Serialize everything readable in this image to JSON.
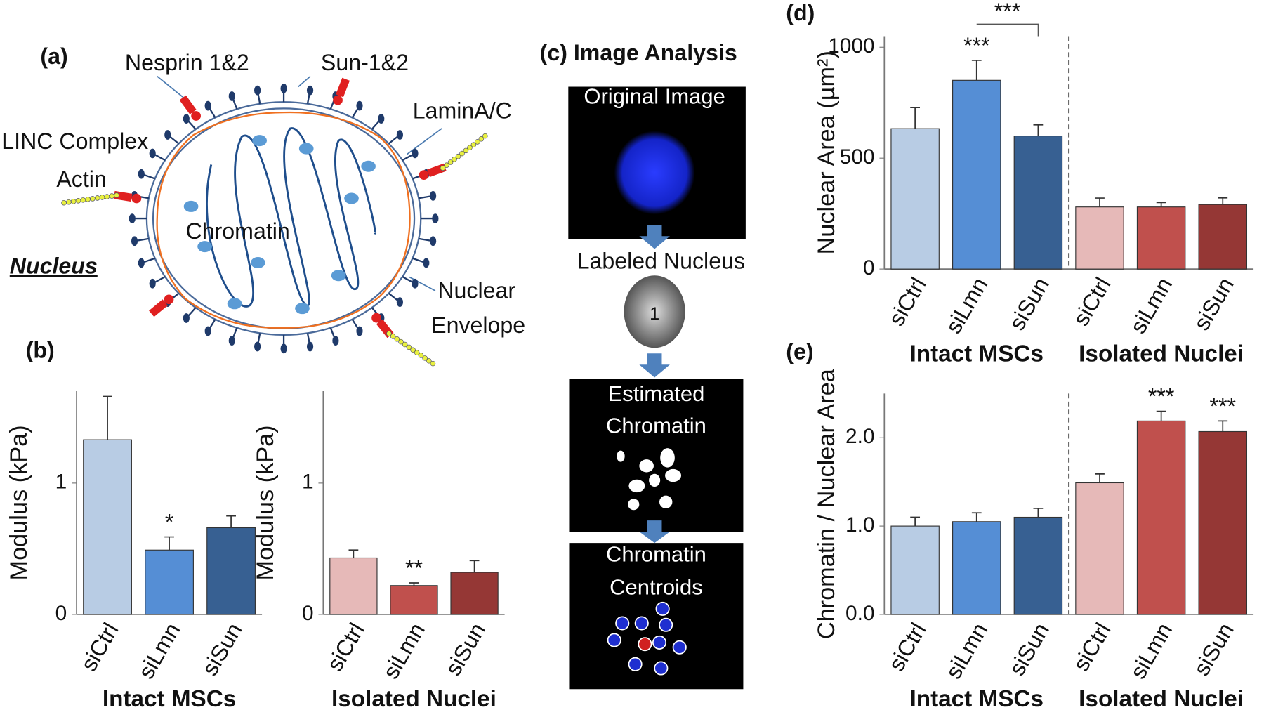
{
  "panel_a": {
    "label": "(a)",
    "nesprin": "Nesprin 1&2",
    "sun": "Sun-1&2",
    "lamin": "LaminA/C",
    "linc": "LINC Complex",
    "actin": "Actin",
    "chromatin": "Chromatin",
    "nucleus": "Nucleus",
    "envelope": [
      "Nuclear",
      "Envelope"
    ]
  },
  "panel_b": {
    "label": "(b)"
  },
  "panel_c": {
    "label": "(c) Image Analysis",
    "original": "Original Image",
    "labeled": "Labeled Nucleus",
    "nucleus_id": "1",
    "estimated": [
      "Estimated",
      "Chromatin"
    ],
    "centroids": [
      "Chromatin",
      "Centroids"
    ]
  },
  "chart_data": [
    {
      "type": "bar",
      "ylabel": "Modulus (kPa)",
      "categories": [
        "siCtrl",
        "siLmn",
        "siSun"
      ],
      "values": [
        1.33,
        0.49,
        0.66
      ],
      "errors": [
        0.33,
        0.1,
        0.09
      ],
      "colors": [
        "#b8cce4",
        "#558ed5",
        "#376092"
      ],
      "ylim": [
        0,
        1.7
      ],
      "yticks": [
        0,
        1
      ],
      "groups": [
        "Intact MSCs"
      ],
      "annotations": [
        null,
        "*",
        null
      ]
    },
    {
      "type": "bar",
      "ylabel": "Modulus (kPa)",
      "categories": [
        "siCtrl",
        "siLmn",
        "siSun"
      ],
      "values": [
        0.43,
        0.22,
        0.32
      ],
      "errors": [
        0.06,
        0.02,
        0.09
      ],
      "colors": [
        "#e6b9b8",
        "#c0504d",
        "#953735"
      ],
      "ylim": [
        0,
        1.7
      ],
      "yticks": [
        0,
        1
      ],
      "groups": [
        "Isolated Nuclei"
      ],
      "annotations": [
        null,
        "**",
        null
      ]
    },
    {
      "type": "bar",
      "panel_label": "(d)",
      "ylabel": "Nuclear  Area (µm²)",
      "categories": [
        "siCtrl",
        "siLmn",
        "siSun",
        "siCtrl",
        "siLmn",
        "siSun"
      ],
      "values": [
        633,
        851,
        600,
        280,
        280,
        291
      ],
      "errors": [
        95,
        90,
        50,
        40,
        20,
        30
      ],
      "colors": [
        "#b8cce4",
        "#558ed5",
        "#376092",
        "#e6b9b8",
        "#c0504d",
        "#953735"
      ],
      "ylim": [
        0,
        1050
      ],
      "yticks": [
        0,
        500,
        1000
      ],
      "groups": [
        "Intact MSCs",
        "Isolated Nuclei"
      ],
      "annotations": [
        null,
        "***",
        null,
        null,
        null,
        null
      ],
      "comparisons": [
        {
          "between": [
            1,
            2
          ],
          "label": "***"
        }
      ]
    },
    {
      "type": "bar",
      "panel_label": "(e)",
      "ylabel": "Chromatin / Nuclear Area",
      "categories": [
        "siCtrl",
        "siLmn",
        "siSun",
        "siCtrl",
        "siLmn",
        "siSun"
      ],
      "values": [
        1.0,
        1.05,
        1.1,
        1.49,
        2.19,
        2.07
      ],
      "errors": [
        0.1,
        0.1,
        0.1,
        0.1,
        0.11,
        0.12
      ],
      "colors": [
        "#b8cce4",
        "#558ed5",
        "#376092",
        "#e6b9b8",
        "#c0504d",
        "#953735"
      ],
      "ylim": [
        0,
        2.5
      ],
      "yticks": [
        {
          "value": 0,
          "label": "0.0"
        },
        {
          "value": 1,
          "label": "1.0"
        },
        {
          "value": 2,
          "label": "2.0"
        }
      ],
      "groups": [
        "Intact MSCs",
        "Isolated Nuclei"
      ],
      "annotations": [
        null,
        null,
        null,
        null,
        "***",
        "***"
      ]
    }
  ]
}
